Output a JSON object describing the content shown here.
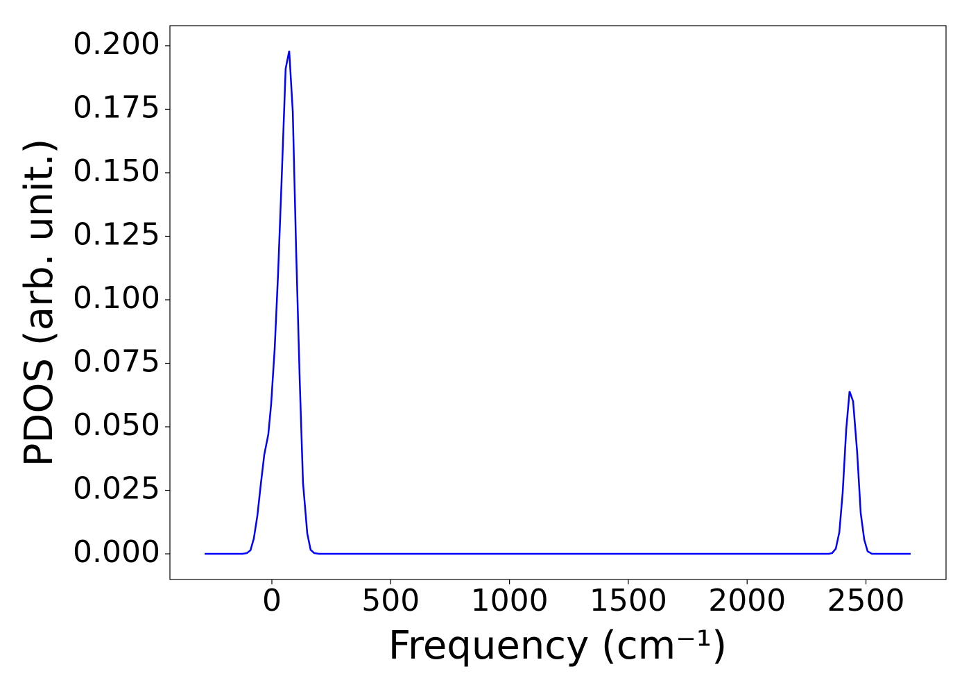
{
  "chart_data": {
    "type": "line",
    "x_label": "Frequency (cm⁻¹)",
    "y_label": "PDOS (arb. unit.)",
    "x": [
      -283,
      -123,
      -105,
      -90,
      -76,
      -61,
      -47,
      -32,
      -15,
      -3,
      12,
      26,
      41,
      58,
      73,
      88,
      102,
      117,
      131,
      149,
      163,
      178,
      198,
      2344,
      2358,
      2373,
      2388,
      2402,
      2417,
      2431,
      2446,
      2463,
      2478,
      2493,
      2507,
      2525,
      2688
    ],
    "series": [
      {
        "color": "#0000ff",
        "values": [
          0,
          0,
          0.0003,
          0.0014,
          0.006,
          0.015,
          0.027,
          0.039,
          0.047,
          0.059,
          0.081,
          0.11,
          0.147,
          0.191,
          0.198,
          0.174,
          0.12,
          0.069,
          0.028,
          0.008,
          0.0016,
          0.0003,
          0,
          0,
          0.0003,
          0.002,
          0.0085,
          0.024,
          0.049,
          0.064,
          0.06,
          0.04,
          0.016,
          0.0055,
          0.001,
          0,
          0
        ]
      }
    ],
    "xlim": [
      -429,
      2837
    ],
    "ylim": [
      -0.0101,
      0.2079
    ],
    "xticks": [
      0,
      500,
      1000,
      1500,
      2000,
      2500
    ],
    "yticks": [
      {
        "value": 0,
        "label": "0.000"
      },
      {
        "value": 0.025,
        "label": "0.025"
      },
      {
        "value": 0.05,
        "label": "0.050"
      },
      {
        "value": 0.075,
        "label": "0.075"
      },
      {
        "value": 0.1,
        "label": "0.100"
      },
      {
        "value": 0.125,
        "label": "0.125"
      },
      {
        "value": 0.15,
        "label": "0.150"
      },
      {
        "value": 0.175,
        "label": "0.175"
      },
      {
        "value": 0.2,
        "label": "0.200"
      }
    ],
    "grid": false
  }
}
